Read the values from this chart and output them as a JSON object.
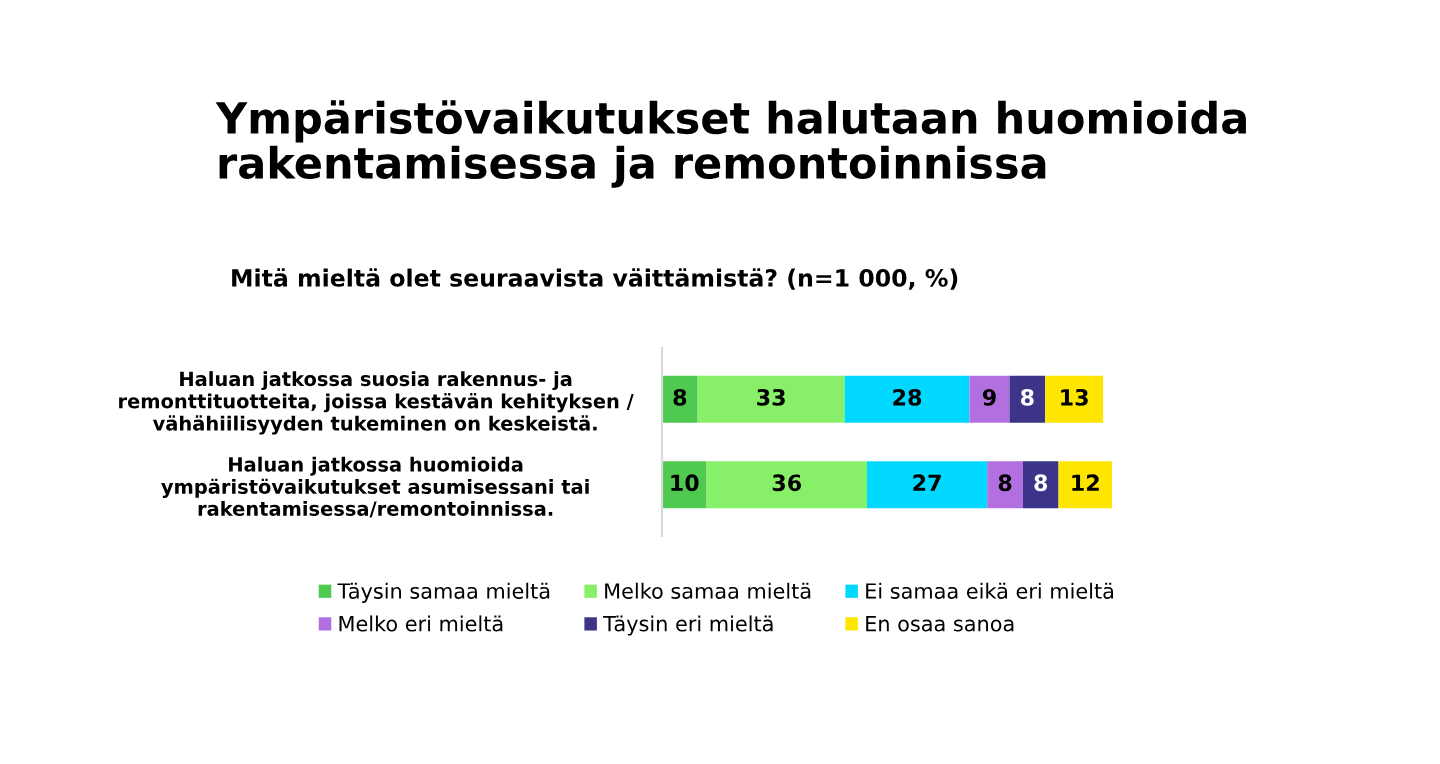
{
  "chart_data": {
    "type": "bar",
    "orientation": "horizontal",
    "stacked": true,
    "title": "Ympäristövaikutukset halutaan huomioida\nrakentamisessa ja remontoinnissa",
    "subtitle": "Mitä mieltä olet seuraavista väittämistä? (n=1 000, %)",
    "categories": [
      "Haluan jatkossa suosia rakennus- ja\nremonttituotteita, joissa kestävän kehityksen /\nvähähiilisyyden tukeminen on keskeistä.",
      "Haluan jatkossa huomioida\nympäristövaikutukset asumisessani tai\nrakentamisessa/remontoinnissa."
    ],
    "series": [
      {
        "name": "Täysin samaa mieltä",
        "color": "#4fc94f",
        "values": [
          8,
          10
        ]
      },
      {
        "name": "Melko samaa mieltä",
        "color": "#88f068",
        "values": [
          33,
          36
        ]
      },
      {
        "name": "Ei samaa eikä eri mieltä",
        "color": "#00d8ff",
        "values": [
          28,
          27
        ]
      },
      {
        "name": "Melko eri mieltä",
        "color": "#b26fe0",
        "values": [
          9,
          8
        ]
      },
      {
        "name": "Täysin eri mieltä",
        "color": "#3b3489",
        "values": [
          8,
          8
        ]
      },
      {
        "name": "En osaa sanoa",
        "color": "#ffe600",
        "values": [
          13,
          12
        ]
      }
    ],
    "xlim": [
      0,
      101
    ],
    "tick_labels": "y",
    "data_labels": true,
    "grid": false,
    "legend": "bottom"
  }
}
